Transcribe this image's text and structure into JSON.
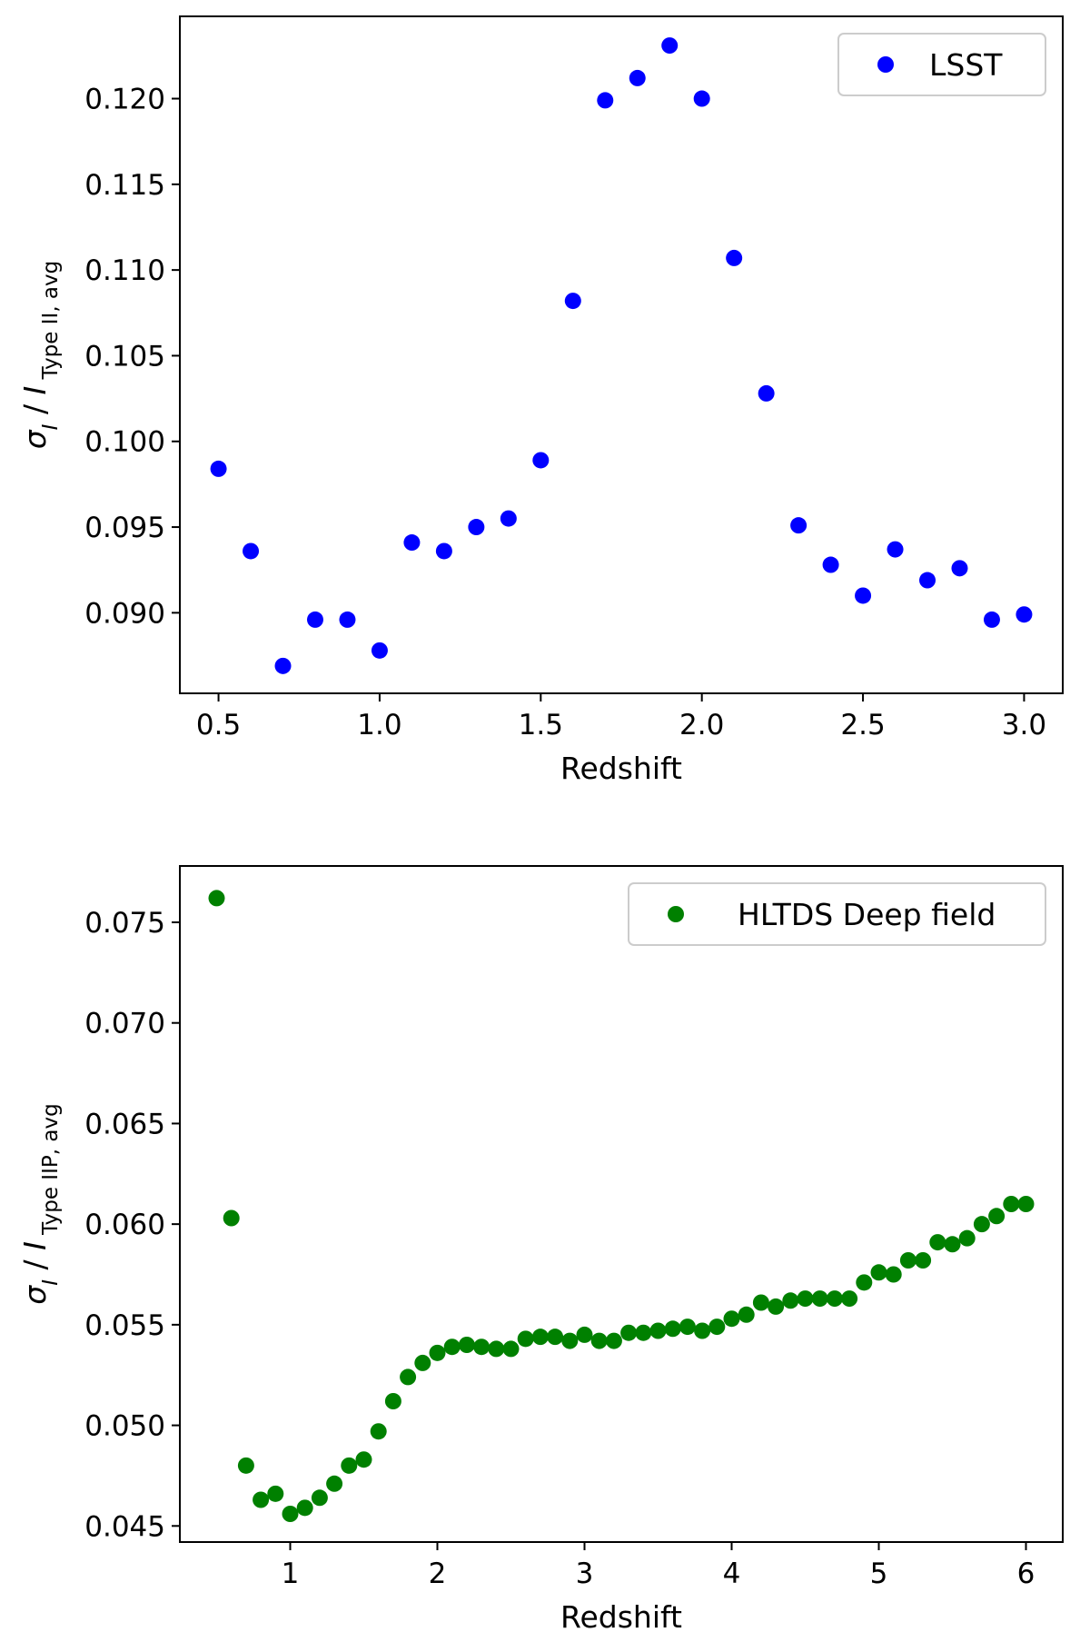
{
  "chart_data": [
    {
      "type": "scatter",
      "xlabel": "Redshift",
      "ylabel": {
        "sigma": "σ",
        "sigma_sub": "I",
        "slash": "/",
        "I": "I",
        "I_sub": "Type II, avg"
      },
      "xlim": [
        0.38,
        3.12
      ],
      "ylim": [
        0.0853,
        0.1248
      ],
      "xticks": [
        "0.5",
        "1.0",
        "1.5",
        "2.0",
        "2.5",
        "3.0"
      ],
      "yticks": [
        "0.090",
        "0.095",
        "0.100",
        "0.105",
        "0.110",
        "0.115",
        "0.120"
      ],
      "legend_position": "top-right",
      "grid": false,
      "series": [
        {
          "name": "LSST",
          "color": "#0000ff",
          "x": [
            0.5,
            0.6,
            0.7,
            0.8,
            0.9,
            1.0,
            1.1,
            1.2,
            1.3,
            1.4,
            1.5,
            1.6,
            1.7,
            1.8,
            1.9,
            2.0,
            2.1,
            2.2,
            2.3,
            2.4,
            2.5,
            2.6,
            2.7,
            2.8,
            2.9,
            3.0
          ],
          "y": [
            0.0984,
            0.0936,
            0.0869,
            0.0896,
            0.0896,
            0.0878,
            0.0941,
            0.0936,
            0.095,
            0.0955,
            0.0989,
            0.1082,
            0.1199,
            0.1212,
            0.1231,
            0.12,
            0.1107,
            0.1028,
            0.0951,
            0.0928,
            0.091,
            0.0937,
            0.0919,
            0.0926,
            0.0896,
            0.0899
          ]
        }
      ]
    },
    {
      "type": "scatter",
      "xlabel": "Redshift",
      "ylabel": {
        "sigma": "σ",
        "sigma_sub": "I",
        "slash": "/",
        "I": "I",
        "I_sub": "Type IIP, avg"
      },
      "xlim": [
        0.25,
        6.25
      ],
      "ylim": [
        0.0442,
        0.0778
      ],
      "xticks": [
        "1",
        "2",
        "3",
        "4",
        "5",
        "6"
      ],
      "yticks": [
        "0.045",
        "0.050",
        "0.055",
        "0.060",
        "0.065",
        "0.070",
        "0.075"
      ],
      "legend_position": "top-right",
      "grid": false,
      "series": [
        {
          "name": "HLTDS Deep field",
          "color": "#008000",
          "x": [
            0.5,
            0.6,
            0.7,
            0.8,
            0.9,
            1.0,
            1.1,
            1.2,
            1.3,
            1.4,
            1.5,
            1.6,
            1.7,
            1.8,
            1.9,
            2.0,
            2.1,
            2.2,
            2.3,
            2.4,
            2.5,
            2.6,
            2.7,
            2.8,
            2.9,
            3.0,
            3.1,
            3.2,
            3.3,
            3.4,
            3.5,
            3.6,
            3.7,
            3.8,
            3.9,
            4.0,
            4.1,
            4.2,
            4.3,
            4.4,
            4.5,
            4.6,
            4.7,
            4.8,
            4.9,
            5.0,
            5.1,
            5.2,
            5.3,
            5.4,
            5.5,
            5.6,
            5.7,
            5.8,
            5.9,
            6.0
          ],
          "y": [
            0.0762,
            0.0603,
            0.048,
            0.0463,
            0.0466,
            0.0456,
            0.0459,
            0.0464,
            0.0471,
            0.048,
            0.0483,
            0.0497,
            0.0512,
            0.0524,
            0.0531,
            0.0536,
            0.0539,
            0.054,
            0.0539,
            0.0538,
            0.0538,
            0.0543,
            0.0544,
            0.0544,
            0.0542,
            0.0545,
            0.0542,
            0.0542,
            0.0546,
            0.0546,
            0.0547,
            0.0548,
            0.0549,
            0.0547,
            0.0549,
            0.0553,
            0.0555,
            0.0561,
            0.0559,
            0.0562,
            0.0563,
            0.0563,
            0.0563,
            0.0563,
            0.0571,
            0.0576,
            0.0575,
            0.0582,
            0.0582,
            0.0591,
            0.059,
            0.0593,
            0.06,
            0.0604,
            0.061,
            0.061
          ]
        }
      ]
    }
  ]
}
